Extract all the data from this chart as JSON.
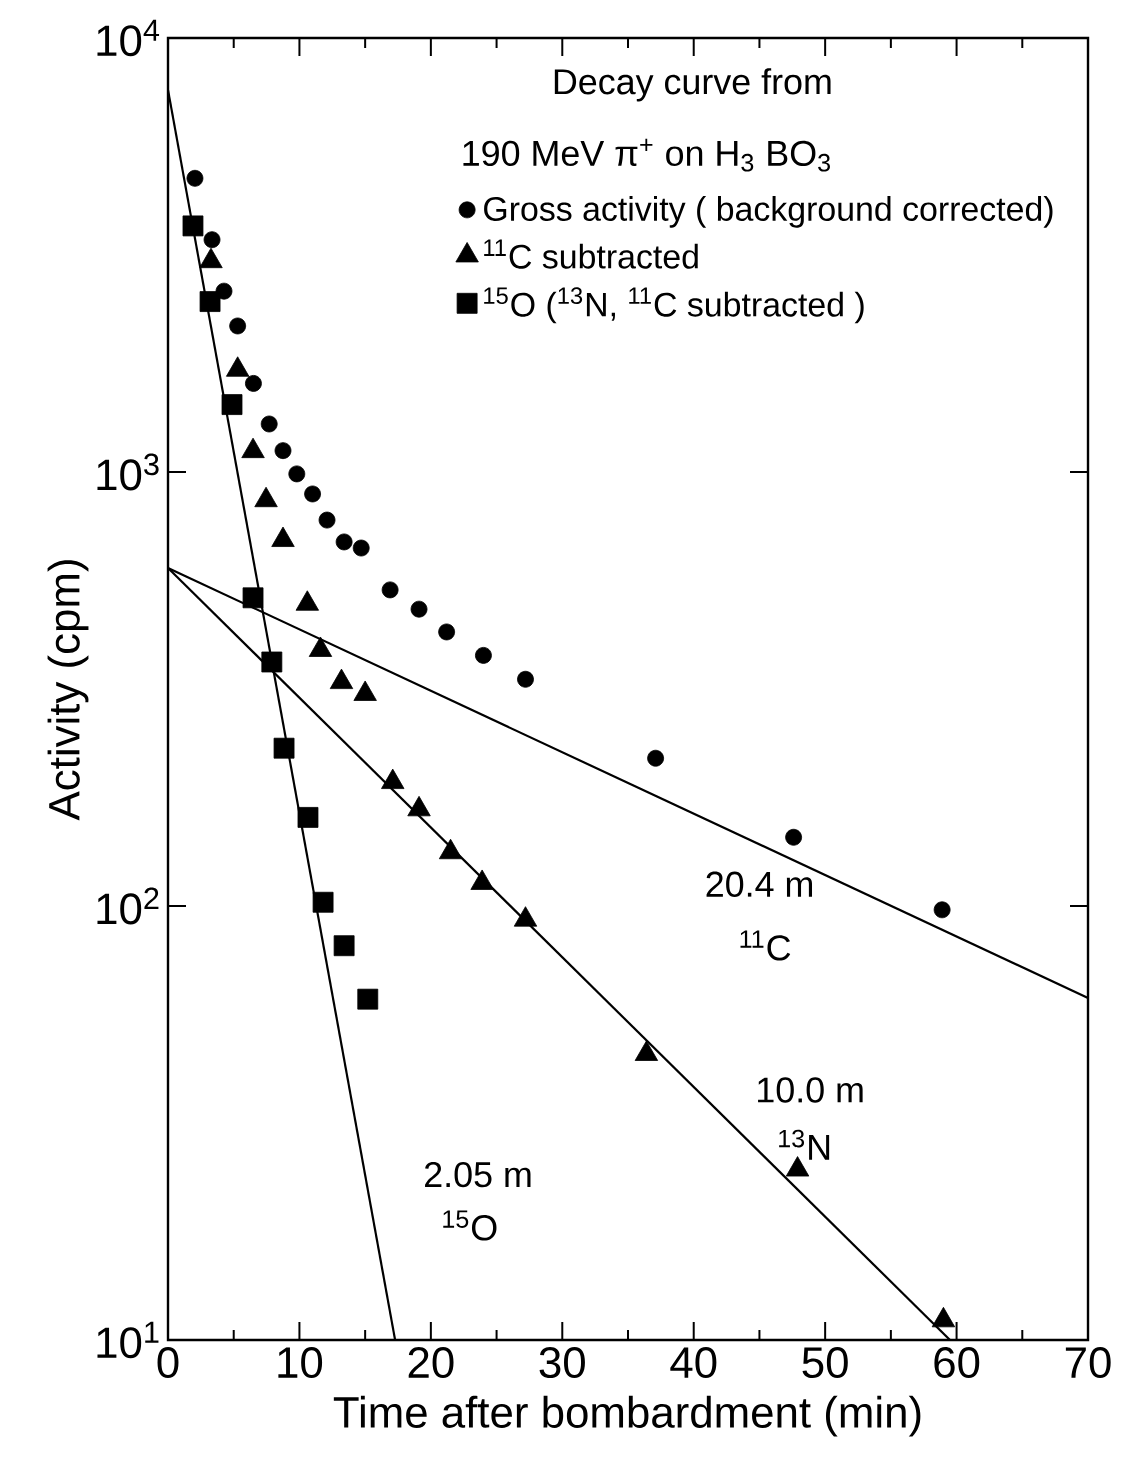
{
  "chart_data": {
    "type": "scatter",
    "title": "Decay curve from",
    "subtitle": "190 MeV π$^{+}$ on H$_{3}$ BO$_{3}$",
    "xlabel": "Time after bombardment  (min)",
    "ylabel": "Activity  (cpm)",
    "xlim": [
      0,
      70
    ],
    "ylim": [
      10,
      10000
    ],
    "log": "y",
    "xticks": [
      0,
      10,
      20,
      30,
      40,
      50,
      60,
      70
    ],
    "yticks": [
      {
        "value": 10,
        "label": "10$^{1}$"
      },
      {
        "value": 100,
        "label": "10$^{2}$"
      },
      {
        "value": 1000,
        "label": "10$^{3}$"
      },
      {
        "value": 10000,
        "label": "10$^{4}$"
      }
    ],
    "grid": false,
    "legend": "top right",
    "series": [
      {
        "name": "Gross activity ( background corrected)",
        "marker": "circle",
        "color": "#000000",
        "x": [
          2.05,
          3.35,
          4.26,
          5.3,
          6.5,
          7.7,
          8.75,
          9.8,
          11.0,
          12.1,
          13.4,
          14.7,
          16.9,
          19.1,
          21.2,
          24.0,
          27.2,
          37.1,
          47.6,
          58.9
        ],
        "values": [
          4750,
          3430,
          2610,
          2170,
          1600,
          1290,
          1120,
          990,
          890,
          775,
          690,
          668,
          535,
          483,
          428,
          378,
          333,
          219,
          144,
          98
        ]
      },
      {
        "name": "$^{11}$C subtracted",
        "marker": "triangle",
        "color": "#000000",
        "x": [
          3.27,
          5.3,
          6.47,
          7.46,
          8.75,
          10.6,
          11.6,
          13.2,
          15.0,
          17.1,
          19.1,
          21.5,
          23.9,
          27.2,
          36.4,
          47.9,
          59.0
        ],
        "values": [
          3060,
          1720,
          1117,
          861,
          697,
          497,
          389,
          328,
          308,
          193,
          167,
          133,
          113,
          93,
          45.6,
          24.7,
          11.1
        ]
      },
      {
        "name": "$^{15}$O ($^{13}$N, $^{11}$C  subtracted )",
        "marker": "square",
        "color": "#000000",
        "x": [
          1.9,
          3.2,
          4.87,
          6.47,
          7.9,
          8.83,
          10.65,
          11.8,
          13.4,
          15.2
        ],
        "values": [
          3690,
          2470,
          1430,
          513,
          365,
          231,
          160,
          102,
          81,
          61
        ]
      },
      {
        "type": "line",
        "color": "#000000",
        "x": [
          0,
          17.28
        ],
        "values": [
          7590,
          10
        ]
      },
      {
        "type": "line",
        "color": "#000000",
        "x": [
          0,
          59.5
        ],
        "values": [
          601,
          10
        ]
      },
      {
        "type": "line",
        "color": "#000000",
        "x": [
          0,
          70
        ],
        "values": [
          601,
          61.4
        ]
      }
    ],
    "annotations": [
      "20.4 m",
      "$^{11}$C",
      "10.0 m",
      "$^{13}$N",
      "2.05 m",
      "$^{15}$O"
    ]
  }
}
